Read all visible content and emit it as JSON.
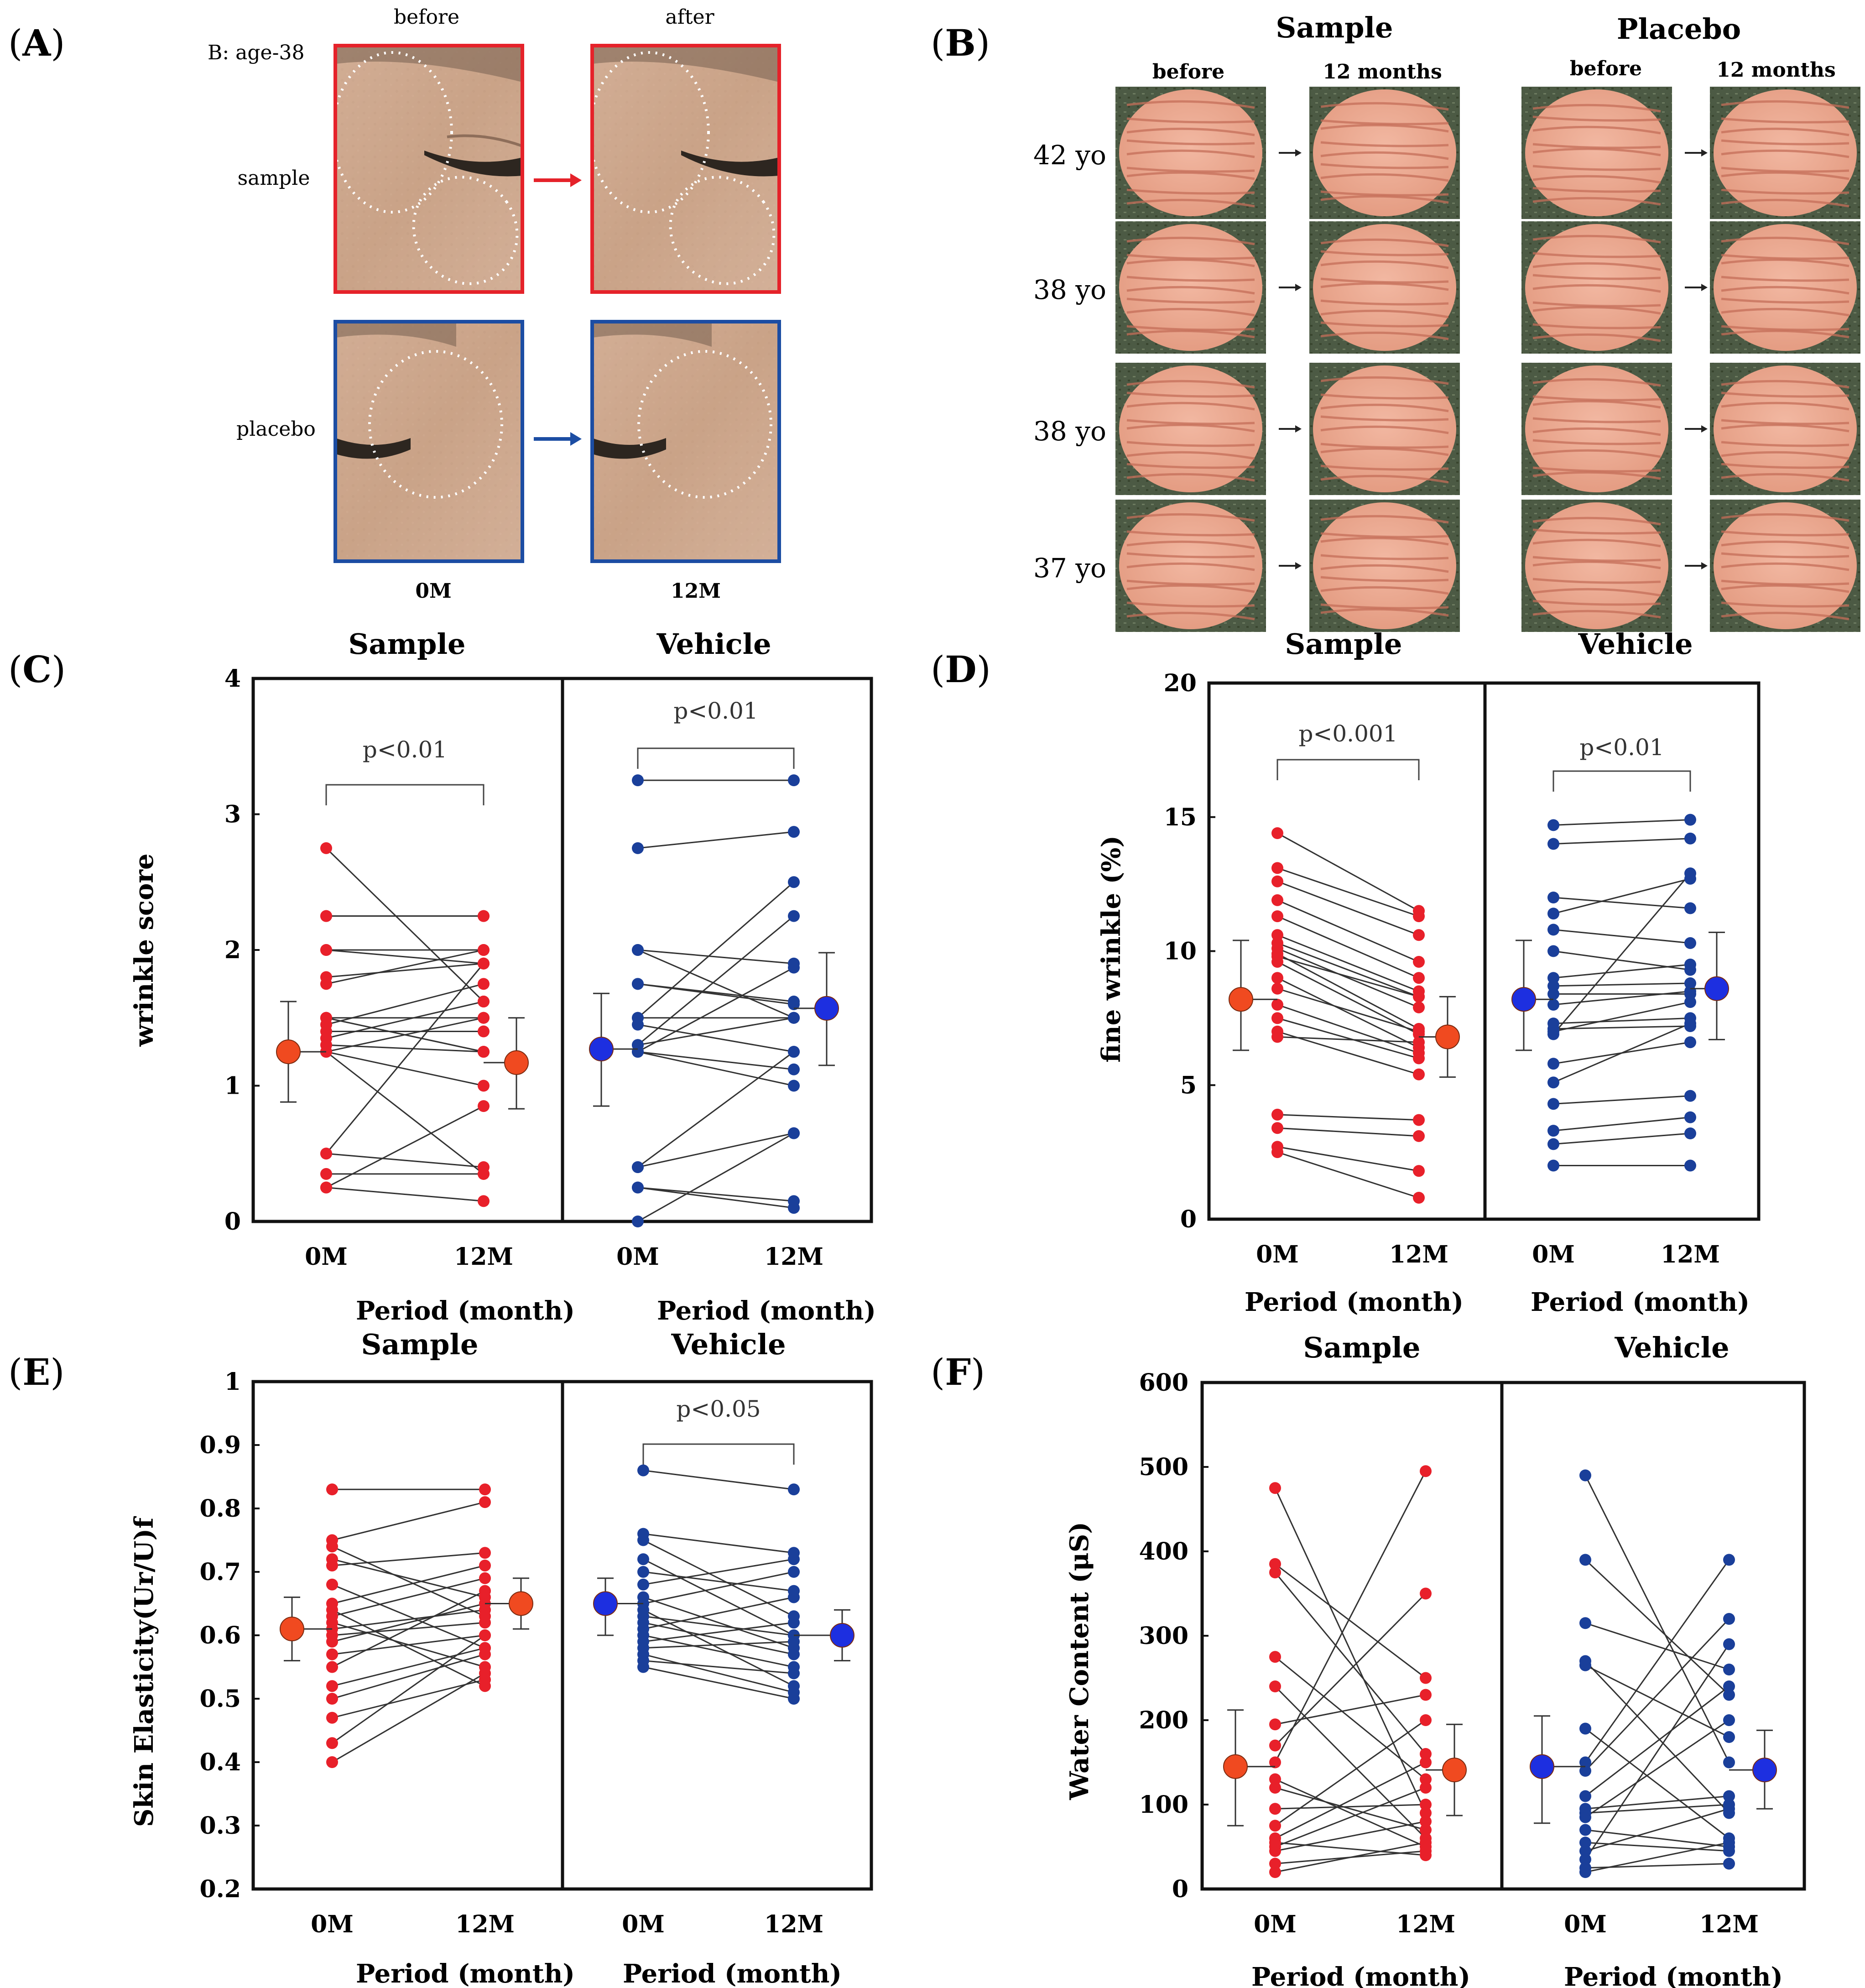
{
  "panels": {
    "A": {
      "label": "A",
      "subject": "B: age-38",
      "col_before": "before",
      "col_after": "after",
      "row_sample": "sample",
      "row_placebo": "placebo",
      "time_0": "0M",
      "time_12": "12M",
      "frame_sample_color": "#e5222a",
      "frame_placebo_color": "#1c4da3"
    },
    "B": {
      "label": "B",
      "group_sample": "Sample",
      "group_placebo": "Placebo",
      "col_before": "before",
      "col_12": "12 months",
      "ages": [
        "42 yo",
        "38 yo",
        "38 yo",
        "37 yo"
      ]
    }
  },
  "chart_data": [
    {
      "panel": "C",
      "type": "scatter",
      "titles": [
        "Sample",
        "Vehicle"
      ],
      "ylabel": "wrinkle score",
      "xlabel": "Period (month)",
      "xticks": [
        "0M",
        "12M"
      ],
      "ylim": [
        0,
        4
      ],
      "yticks": [
        "0",
        "1",
        "2",
        "3",
        "4"
      ],
      "sample_color": "#e8202a",
      "vehicle_color": "#1a3f9a",
      "pvalues": [
        "p<0.01",
        "p<0.01"
      ],
      "sample": {
        "pairs": [
          [
            2.75,
            1.62
          ],
          [
            2.25,
            2.25
          ],
          [
            2.25,
            2.25
          ],
          [
            2.0,
            2.0
          ],
          [
            2.0,
            1.9
          ],
          [
            1.8,
            1.9
          ],
          [
            1.75,
            2.0
          ],
          [
            1.5,
            1.5
          ],
          [
            1.5,
            1.25
          ],
          [
            1.45,
            1.75
          ],
          [
            1.4,
            1.4
          ],
          [
            1.3,
            1.25
          ],
          [
            1.25,
            1.5
          ],
          [
            1.25,
            1.0
          ],
          [
            1.25,
            0.35
          ],
          [
            0.5,
            0.4
          ],
          [
            0.5,
            1.9
          ],
          [
            0.35,
            0.35
          ],
          [
            0.25,
            0.15
          ],
          [
            0.25,
            0.85
          ],
          [
            1.35,
            1.62
          ],
          [
            1.5,
            1.25
          ]
        ],
        "mean": [
          1.25,
          1.17
        ],
        "err": [
          [
            0.88,
            1.62
          ],
          [
            0.83,
            1.5
          ]
        ]
      },
      "vehicle": {
        "pairs": [
          [
            3.25,
            3.25
          ],
          [
            2.75,
            2.87
          ],
          [
            2.0,
            1.9
          ],
          [
            2.0,
            1.5
          ],
          [
            1.75,
            1.62
          ],
          [
            1.75,
            1.6
          ],
          [
            1.5,
            2.5
          ],
          [
            1.5,
            1.5
          ],
          [
            1.45,
            1.25
          ],
          [
            1.3,
            2.25
          ],
          [
            1.25,
            1.87
          ],
          [
            1.25,
            1.0
          ],
          [
            0.4,
            0.65
          ],
          [
            0.4,
            1.25
          ],
          [
            0.25,
            0.15
          ],
          [
            0.25,
            0.1
          ],
          [
            0.0,
            0.65
          ],
          [
            1.25,
            1.12
          ],
          [
            1.3,
            1.5
          ]
        ],
        "mean": [
          1.27,
          1.57
        ],
        "err": [
          [
            0.85,
            1.68
          ],
          [
            1.15,
            1.98
          ]
        ]
      }
    },
    {
      "panel": "D",
      "type": "scatter",
      "titles": [
        "Sample",
        "Vehicle"
      ],
      "ylabel": "fine wrinkle (%)",
      "xlabel": "Period (month)",
      "xticks": [
        "0M",
        "12M"
      ],
      "ylim": [
        0,
        20
      ],
      "yticks": [
        "0",
        "5",
        "10",
        "15",
        "20"
      ],
      "sample_color": "#e8202a",
      "vehicle_color": "#1a3f9a",
      "pvalues": [
        "p<0.001",
        "p<0.01"
      ],
      "sample": {
        "pairs": [
          [
            14.4,
            11.5
          ],
          [
            13.1,
            11.3
          ],
          [
            12.6,
            10.6
          ],
          [
            11.9,
            9.6
          ],
          [
            11.3,
            9.0
          ],
          [
            10.6,
            8.5
          ],
          [
            10.3,
            8.3
          ],
          [
            10.1,
            7.9
          ],
          [
            9.9,
            7.1
          ],
          [
            9.6,
            6.9
          ],
          [
            9.0,
            6.4
          ],
          [
            8.6,
            7.0
          ],
          [
            8.0,
            6.2
          ],
          [
            7.5,
            6.0
          ],
          [
            7.0,
            5.4
          ],
          [
            6.8,
            6.6
          ],
          [
            3.9,
            3.7
          ],
          [
            3.4,
            3.1
          ],
          [
            2.7,
            1.8
          ],
          [
            2.5,
            0.8
          ],
          [
            9.8,
            8.3
          ]
        ],
        "mean": [
          8.2,
          6.8
        ],
        "err": [
          [
            6.3,
            10.4
          ],
          [
            5.3,
            8.3
          ]
        ]
      },
      "vehicle": {
        "pairs": [
          [
            14.7,
            14.9
          ],
          [
            14.0,
            14.2
          ],
          [
            12.0,
            11.6
          ],
          [
            11.4,
            12.7
          ],
          [
            10.8,
            10.3
          ],
          [
            10.0,
            9.3
          ],
          [
            9.0,
            9.5
          ],
          [
            8.7,
            8.8
          ],
          [
            8.4,
            8.4
          ],
          [
            8.0,
            8.5
          ],
          [
            7.3,
            7.5
          ],
          [
            7.1,
            7.2
          ],
          [
            7.0,
            8.1
          ],
          [
            6.9,
            12.9
          ],
          [
            5.8,
            6.6
          ],
          [
            5.1,
            7.3
          ],
          [
            4.3,
            4.6
          ],
          [
            3.3,
            3.8
          ],
          [
            2.8,
            3.2
          ],
          [
            2.0,
            2.0
          ]
        ],
        "mean": [
          8.2,
          8.6
        ],
        "err": [
          [
            6.3,
            10.4
          ],
          [
            6.7,
            10.7
          ]
        ]
      }
    },
    {
      "panel": "E",
      "type": "scatter",
      "titles": [
        "Sample",
        "Vehicle"
      ],
      "ylabel": "Skin Elasticity(Ur/U)f",
      "xlabel": "Period (month)",
      "xticks": [
        "0M",
        "12M"
      ],
      "ylim": [
        0.2,
        1.0
      ],
      "yticks": [
        "0.2",
        "0.3",
        "0.4",
        "0.5",
        "0.6",
        "0.7",
        "0.8",
        "0.9",
        "1"
      ],
      "sample_color": "#e8202a",
      "vehicle_color": "#1a3f9a",
      "pvalues": [
        "",
        "p<0.05"
      ],
      "sample": {
        "pairs": [
          [
            0.83,
            0.83
          ],
          [
            0.75,
            0.81
          ],
          [
            0.74,
            0.63
          ],
          [
            0.72,
            0.66
          ],
          [
            0.71,
            0.73
          ],
          [
            0.68,
            0.58
          ],
          [
            0.65,
            0.71
          ],
          [
            0.63,
            0.69
          ],
          [
            0.62,
            0.55
          ],
          [
            0.61,
            0.64
          ],
          [
            0.6,
            0.62
          ],
          [
            0.59,
            0.65
          ],
          [
            0.57,
            0.6
          ],
          [
            0.55,
            0.67
          ],
          [
            0.52,
            0.58
          ],
          [
            0.5,
            0.57
          ],
          [
            0.47,
            0.53
          ],
          [
            0.43,
            0.6
          ],
          [
            0.4,
            0.54
          ],
          [
            0.64,
            0.52
          ]
        ],
        "mean": [
          0.61,
          0.65
        ],
        "err": [
          [
            0.56,
            0.66
          ],
          [
            0.61,
            0.69
          ]
        ]
      },
      "vehicle": {
        "pairs": [
          [
            0.86,
            0.83
          ],
          [
            0.76,
            0.73
          ],
          [
            0.75,
            0.63
          ],
          [
            0.72,
            0.6
          ],
          [
            0.7,
            0.67
          ],
          [
            0.68,
            0.72
          ],
          [
            0.66,
            0.58
          ],
          [
            0.65,
            0.7
          ],
          [
            0.64,
            0.52
          ],
          [
            0.63,
            0.6
          ],
          [
            0.62,
            0.57
          ],
          [
            0.61,
            0.66
          ],
          [
            0.6,
            0.55
          ],
          [
            0.59,
            0.62
          ],
          [
            0.58,
            0.59
          ],
          [
            0.57,
            0.51
          ],
          [
            0.56,
            0.54
          ],
          [
            0.55,
            0.5
          ]
        ],
        "mean": [
          0.65,
          0.6
        ],
        "err": [
          [
            0.6,
            0.69
          ],
          [
            0.56,
            0.64
          ]
        ]
      }
    },
    {
      "panel": "F",
      "type": "scatter",
      "titles": [
        "Sample",
        "Vehicle"
      ],
      "ylabel": "Water  Content  (μS)",
      "xlabel": "Period (month)",
      "xticks": [
        "0M",
        "12M"
      ],
      "ylim": [
        0,
        600
      ],
      "yticks": [
        "0",
        "100",
        "200",
        "300",
        "400",
        "500",
        "600"
      ],
      "sample_color": "#e8202a",
      "vehicle_color": "#1a3f9a",
      "pvalues": [
        "",
        ""
      ],
      "sample": {
        "pairs": [
          [
            475,
            90
          ],
          [
            385,
            250
          ],
          [
            375,
            160
          ],
          [
            275,
            130
          ],
          [
            240,
            60
          ],
          [
            195,
            230
          ],
          [
            170,
            350
          ],
          [
            150,
            495
          ],
          [
            130,
            50
          ],
          [
            120,
            70
          ],
          [
            95,
            100
          ],
          [
            75,
            200
          ],
          [
            60,
            150
          ],
          [
            55,
            40
          ],
          [
            50,
            120
          ],
          [
            45,
            80
          ],
          [
            30,
            45
          ],
          [
            20,
            55
          ]
        ],
        "mean": [
          145,
          141
        ],
        "err": [
          [
            75,
            212
          ],
          [
            87,
            195
          ]
        ]
      },
      "vehicle": {
        "pairs": [
          [
            490,
            150
          ],
          [
            390,
            230
          ],
          [
            315,
            260
          ],
          [
            270,
            90
          ],
          [
            265,
            180
          ],
          [
            190,
            60
          ],
          [
            150,
            390
          ],
          [
            140,
            320
          ],
          [
            110,
            240
          ],
          [
            95,
            110
          ],
          [
            90,
            100
          ],
          [
            85,
            200
          ],
          [
            70,
            50
          ],
          [
            55,
            45
          ],
          [
            45,
            95
          ],
          [
            35,
            290
          ],
          [
            25,
            30
          ],
          [
            20,
            55
          ]
        ],
        "mean": [
          145,
          141
        ],
        "err": [
          [
            78,
            205
          ],
          [
            95,
            188
          ]
        ]
      }
    }
  ]
}
